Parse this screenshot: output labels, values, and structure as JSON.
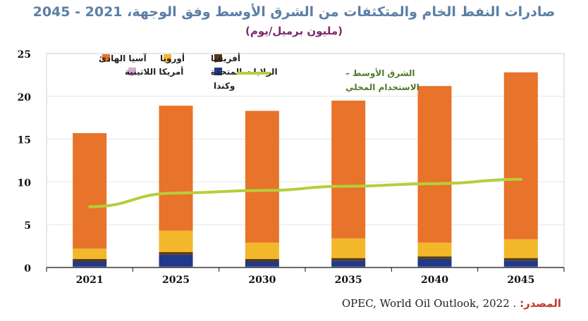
{
  "chart_data": {
    "type": "bar",
    "title": "صادرات النفط الخام والمتكثفات من الشرق الأوسط وفق الوجهة، 2021 - 2045",
    "subtitle": "(مليون برميل/يوم)",
    "categories": [
      "2021",
      "2025",
      "2030",
      "2035",
      "2040",
      "2045"
    ],
    "ylim": [
      0,
      25
    ],
    "yticks": [
      0,
      5,
      10,
      15,
      20,
      25
    ],
    "grid": true,
    "legend_placement": "top-left",
    "series": [
      {
        "name": "أمريكا اللاتينية",
        "color": "#d8a8cc",
        "values": [
          0.1,
          0.1,
          0.1,
          0.1,
          0.1,
          0.1
        ]
      },
      {
        "name": "الولايات المتحدة وكندا",
        "color": "#1f3a8a",
        "values": [
          0.6,
          1.4,
          0.6,
          0.7,
          0.9,
          0.7
        ]
      },
      {
        "name": "أفريقيا",
        "color": "#5a3a12",
        "values": [
          0.3,
          0.3,
          0.3,
          0.3,
          0.3,
          0.3
        ]
      },
      {
        "name": "أوروبا",
        "color": "#f2b82a",
        "values": [
          1.2,
          2.5,
          1.9,
          2.3,
          1.6,
          2.2
        ]
      },
      {
        "name": "آسيا الهادئ",
        "color": "#e8732a",
        "values": [
          13.5,
          14.6,
          15.4,
          16.1,
          18.3,
          19.5
        ]
      }
    ],
    "line": {
      "name": "الشرق الأوسط – الاستخدام المحلي",
      "color": "#b5cf3a",
      "values": [
        7.1,
        8.7,
        9.0,
        9.5,
        9.8,
        10.3
      ]
    }
  },
  "source": {
    "label": "المصدر:",
    "text": "OPEC, World Oil Outlook, 2022 ."
  }
}
